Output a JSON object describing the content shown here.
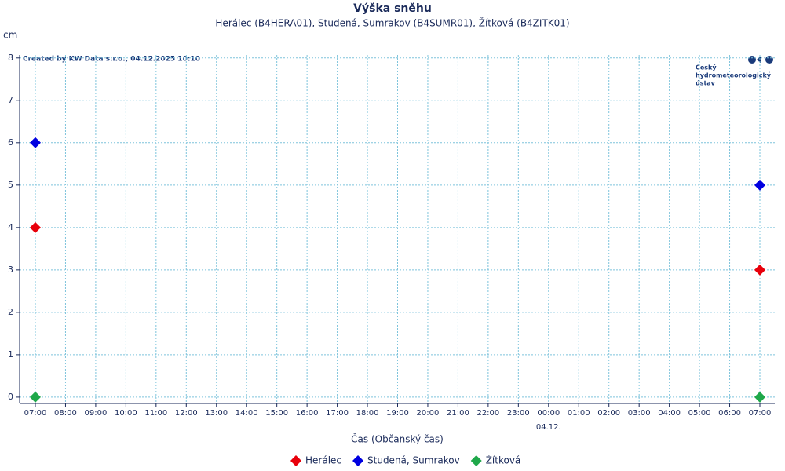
{
  "chart_data": {
    "type": "scatter",
    "title": "Výška sněhu",
    "subtitle": "Herálec (B4HERA01), Studená, Sumrakov (B4SUMR01), Žítková (B4ZITK01)",
    "y_label": "cm",
    "x_label": "Čas (Občanský čas)",
    "credit": "Created by KW Data s.r.o., 04.12.2025 10:10",
    "logo_lines": [
      "Český",
      "hydrometeorologický",
      "ústav"
    ],
    "categories": [
      "07:00",
      "08:00",
      "09:00",
      "10:00",
      "11:00",
      "12:00",
      "13:00",
      "14:00",
      "15:00",
      "16:00",
      "17:00",
      "18:00",
      "19:00",
      "20:00",
      "21:00",
      "22:00",
      "23:00",
      "00:00",
      "01:00",
      "02:00",
      "03:00",
      "04:00",
      "05:00",
      "06:00",
      "07:00"
    ],
    "date_label": "04.12.",
    "series": [
      {
        "name": "Herálec",
        "color": "#e8000b",
        "values": [
          4,
          null,
          null,
          null,
          null,
          null,
          null,
          null,
          null,
          null,
          null,
          null,
          null,
          null,
          null,
          null,
          null,
          null,
          null,
          null,
          null,
          null,
          null,
          null,
          3
        ]
      },
      {
        "name": "Studená, Sumrakov",
        "color": "#0000e0",
        "values": [
          6,
          null,
          null,
          null,
          null,
          null,
          null,
          null,
          null,
          null,
          null,
          null,
          null,
          null,
          null,
          null,
          null,
          null,
          null,
          null,
          null,
          null,
          null,
          null,
          5
        ]
      },
      {
        "name": "Žítková",
        "color": "#1fa84a",
        "values": [
          0,
          null,
          null,
          null,
          null,
          null,
          null,
          null,
          null,
          null,
          null,
          null,
          null,
          null,
          null,
          null,
          null,
          null,
          null,
          null,
          null,
          null,
          null,
          null,
          0
        ]
      }
    ],
    "ylim": [
      -0.15,
      8.07
    ],
    "yticks": [
      0,
      1,
      2,
      3,
      4,
      5,
      6,
      7,
      8
    ],
    "grid": true
  }
}
